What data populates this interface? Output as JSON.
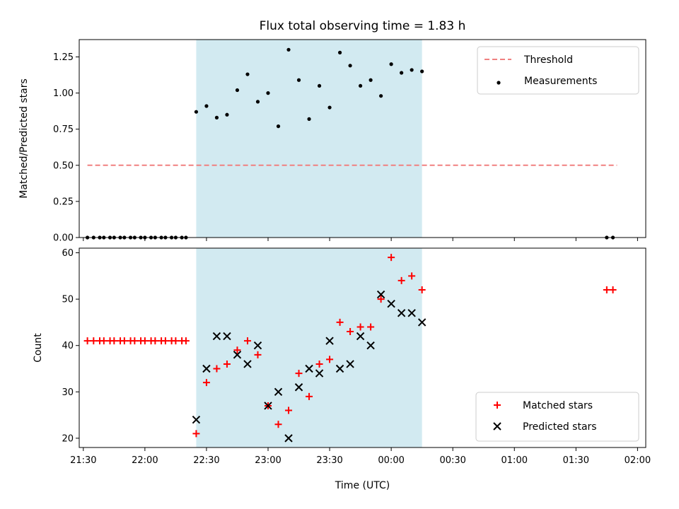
{
  "chart_data": [
    {
      "type": "scatter",
      "title": "Flux total observing time = 1.83 h",
      "ylabel": "Matched/Predicted stars",
      "ylim": [
        0,
        1.37
      ],
      "yticks": [
        "0.00",
        "0.25",
        "0.50",
        "0.75",
        "1.00",
        "1.25"
      ],
      "x_tick_labels_shown": false,
      "legend_position": "top-right",
      "shaded_span": {
        "start": "22:25",
        "end": "00:15",
        "color": "#add8e6"
      },
      "series": [
        {
          "name": "Threshold",
          "style": "dashed-line",
          "color": "#f08080",
          "x": [
            "21:32",
            "01:50"
          ],
          "y": [
            0.5,
            0.5
          ]
        },
        {
          "name": "Measurements",
          "style": "dot",
          "color": "#000000",
          "x": [
            "21:32",
            "21:35",
            "21:38",
            "21:40",
            "21:43",
            "21:45",
            "21:48",
            "21:50",
            "21:53",
            "21:55",
            "21:58",
            "22:00",
            "22:03",
            "22:05",
            "22:08",
            "22:10",
            "22:13",
            "22:15",
            "22:18",
            "22:20",
            "22:25",
            "22:30",
            "22:35",
            "22:40",
            "22:45",
            "22:50",
            "22:55",
            "23:00",
            "23:05",
            "23:10",
            "23:15",
            "23:20",
            "23:25",
            "23:30",
            "23:35",
            "23:40",
            "23:45",
            "23:50",
            "23:55",
            "00:00",
            "00:05",
            "00:10",
            "00:15",
            "01:45",
            "01:48"
          ],
          "y": [
            0,
            0,
            0,
            0,
            0,
            0,
            0,
            0,
            0,
            0,
            0,
            0,
            0,
            0,
            0,
            0,
            0,
            0,
            0,
            0,
            0.87,
            0.91,
            0.83,
            0.85,
            1.02,
            1.13,
            0.94,
            1.0,
            0.77,
            1.3,
            1.09,
            0.82,
            1.05,
            0.9,
            1.28,
            1.19,
            1.05,
            1.09,
            0.98,
            1.2,
            1.14,
            1.16,
            1.15,
            0,
            0
          ]
        }
      ]
    },
    {
      "type": "scatter",
      "xlabel": "Time (UTC)",
      "ylabel": "Count",
      "ylim": [
        18,
        61
      ],
      "yticks": [
        "20",
        "30",
        "40",
        "50",
        "60"
      ],
      "x_tick_labels": [
        "21:30",
        "22:00",
        "22:30",
        "23:00",
        "23:30",
        "00:00",
        "00:30",
        "01:00",
        "01:30",
        "02:00"
      ],
      "legend_position": "bottom-right",
      "shaded_span": {
        "start": "22:25",
        "end": "00:15",
        "color": "#add8e6"
      },
      "series": [
        {
          "name": "Matched stars",
          "style": "plus",
          "color": "#ff0000",
          "x": [
            "21:32",
            "21:35",
            "21:38",
            "21:40",
            "21:43",
            "21:45",
            "21:48",
            "21:50",
            "21:53",
            "21:55",
            "21:58",
            "22:00",
            "22:03",
            "22:05",
            "22:08",
            "22:10",
            "22:13",
            "22:15",
            "22:18",
            "22:20",
            "22:25",
            "22:30",
            "22:35",
            "22:40",
            "22:45",
            "22:50",
            "22:55",
            "23:00",
            "23:05",
            "23:10",
            "23:15",
            "23:20",
            "23:25",
            "23:30",
            "23:35",
            "23:40",
            "23:45",
            "23:50",
            "23:55",
            "00:00",
            "00:05",
            "00:10",
            "00:15",
            "01:45",
            "01:48"
          ],
          "y": [
            41,
            41,
            41,
            41,
            41,
            41,
            41,
            41,
            41,
            41,
            41,
            41,
            41,
            41,
            41,
            41,
            41,
            41,
            41,
            41,
            21,
            32,
            35,
            36,
            39,
            41,
            38,
            27,
            23,
            26,
            34,
            29,
            36,
            37,
            45,
            43,
            44,
            44,
            50,
            59,
            54,
            55,
            52,
            52,
            52
          ]
        },
        {
          "name": "Predicted stars",
          "style": "x",
          "color": "#000000",
          "x": [
            "22:25",
            "22:30",
            "22:35",
            "22:40",
            "22:45",
            "22:50",
            "22:55",
            "23:00",
            "23:05",
            "23:10",
            "23:15",
            "23:20",
            "23:25",
            "23:30",
            "23:35",
            "23:40",
            "23:45",
            "23:50",
            "23:55",
            "00:00",
            "00:05",
            "00:10",
            "00:15"
          ],
          "y": [
            24,
            35,
            42,
            42,
            38,
            36,
            40,
            27,
            30,
            20,
            31,
            35,
            34,
            41,
            35,
            36,
            42,
            40,
            51,
            49,
            47,
            47,
            45
          ]
        }
      ]
    }
  ]
}
